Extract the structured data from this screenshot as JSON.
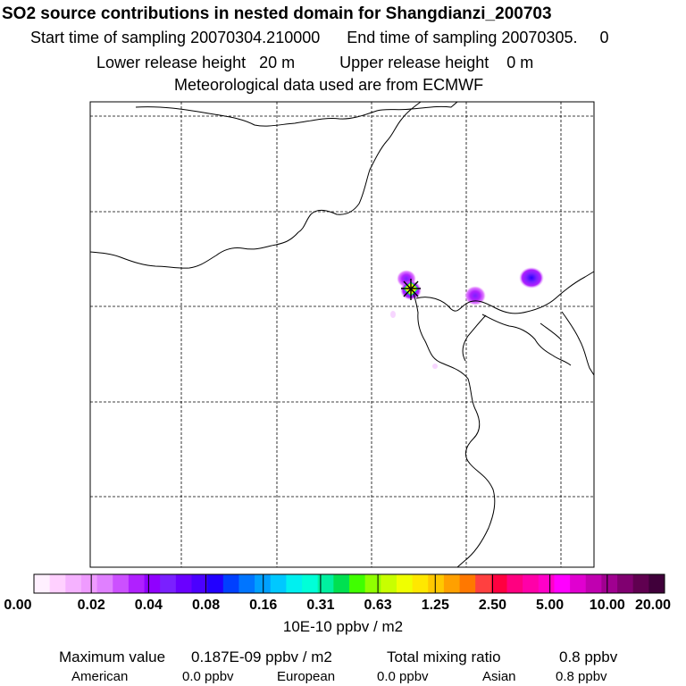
{
  "header": {
    "title": "SO2 source contributions in nested domain for Shangdianzi_200703",
    "start_label": "Start time of sampling",
    "start_value": "20070304.210000",
    "end_label": "End time of sampling",
    "end_value": "20070305.",
    "end_value2": "0",
    "lower_label": "Lower release height",
    "lower_value": "20 m",
    "upper_label": "Upper release height",
    "upper_value": "0 m",
    "met_text": "Meteorological data used are from ECMWF"
  },
  "colorbar": {
    "ticks": [
      "0.00",
      "0.02",
      "0.04",
      "0.08",
      "0.16",
      "0.31",
      "0.63",
      "1.25",
      "2.50",
      "5.00",
      "10.00",
      "20.00"
    ],
    "unit": "10E-10 ppbv / m2",
    "colors": [
      "#fff0ff",
      "#ffd0ff",
      "#f5b2ff",
      "#ef9bff",
      "#e080ff",
      "#cc50ff",
      "#b020ff",
      "#9000ff",
      "#7a20ff",
      "#6a00ff",
      "#4b00ff",
      "#2200ff",
      "#0040ff",
      "#0075ff",
      "#00a0ff",
      "#00c8ff",
      "#00f0f0",
      "#00ffd8",
      "#00f0a0",
      "#00e050",
      "#40ff00",
      "#90ff00",
      "#c8ff00",
      "#f0ff00",
      "#ffe800",
      "#ffc800",
      "#ffa000",
      "#ff7800",
      "#ff4040",
      "#ff0040",
      "#ff0080",
      "#ff00a8",
      "#ff00c8",
      "#ff00ff",
      "#e000d0",
      "#c000b0",
      "#a00090",
      "#800070",
      "#600050",
      "#40003a"
    ]
  },
  "footer": {
    "max_label": "Maximum value",
    "max_value": "0.187E-09 ppbv / m2",
    "total_label": "Total mixing ratio",
    "total_value": "0.8 ppbv",
    "american_label": "American",
    "american_value": "0.0 ppbv",
    "european_label": "European",
    "european_value": "0.0 ppbv",
    "asian_label": "Asian",
    "asian_value": "0.8 ppbv"
  },
  "map": {
    "hotspots": [
      {
        "name": "receptor-plume",
        "intensity": 0.04
      },
      {
        "name": "east-plume",
        "intensity": 0.04
      },
      {
        "name": "coast-plume",
        "intensity": 0.03
      }
    ],
    "receptor_marker": "asterisk-icon"
  }
}
